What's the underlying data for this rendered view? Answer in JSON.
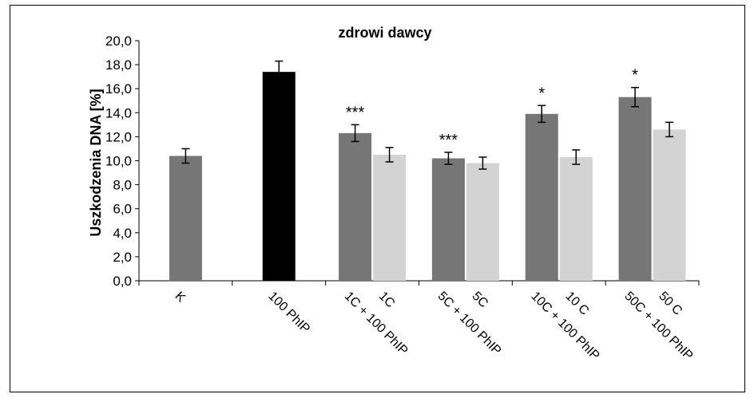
{
  "chart_data": {
    "type": "bar",
    "title": "zdrowi dawcy",
    "ylabel": "Uszkodzenia DNA [%]",
    "xlabel": "",
    "ylim": [
      0,
      20
    ],
    "ytick_labels": [
      "0,0",
      "2,0",
      "4,0",
      "6,0",
      "8,0",
      "10,0",
      "12,0",
      "14,0",
      "16,0",
      "18,0",
      "20,0"
    ],
    "grid": false,
    "bars": [
      {
        "label": "K",
        "value": 10.4,
        "error": 0.6,
        "color": "#767676",
        "group": 0,
        "slot": 0,
        "sig": ""
      },
      {
        "label": "100 PhIP",
        "value": 17.4,
        "error": 0.9,
        "color": "#000000",
        "group": 1,
        "slot": 0,
        "sig": ""
      },
      {
        "label": "1C + 100 PhIP",
        "value": 12.3,
        "error": 0.7,
        "color": "#767676",
        "group": 2,
        "slot": 0,
        "sig": "***"
      },
      {
        "label": "1C",
        "value": 10.5,
        "error": 0.6,
        "color": "#d3d3d3",
        "group": 2,
        "slot": 1,
        "sig": ""
      },
      {
        "label": "5C + 100 PhIP",
        "value": 10.2,
        "error": 0.5,
        "color": "#767676",
        "group": 3,
        "slot": 0,
        "sig": "***"
      },
      {
        "label": "5C",
        "value": 9.8,
        "error": 0.5,
        "color": "#d3d3d3",
        "group": 3,
        "slot": 1,
        "sig": ""
      },
      {
        "label": "10C + 100 PhIP",
        "value": 13.9,
        "error": 0.7,
        "color": "#767676",
        "group": 4,
        "slot": 0,
        "sig": "*"
      },
      {
        "label": "10 C",
        "value": 10.3,
        "error": 0.6,
        "color": "#d3d3d3",
        "group": 4,
        "slot": 1,
        "sig": ""
      },
      {
        "label": "50C + 100 PhIP",
        "value": 15.3,
        "error": 0.8,
        "color": "#767676",
        "group": 5,
        "slot": 0,
        "sig": "*"
      },
      {
        "label": "50 C",
        "value": 12.6,
        "error": 0.6,
        "color": "#d3d3d3",
        "group": 5,
        "slot": 1,
        "sig": ""
      }
    ]
  }
}
